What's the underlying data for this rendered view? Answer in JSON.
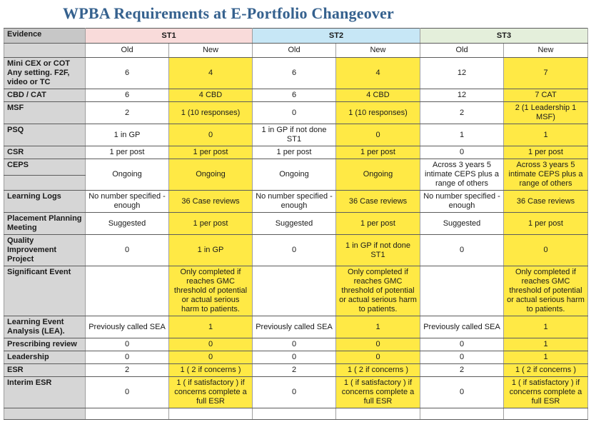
{
  "title": "WPBA Requirements at E-Portfolio Changeover",
  "colors": {
    "title_blue": "#35618e",
    "header_gray": "#c7c7c7",
    "label_gray": "#d6d6d6",
    "st1_pink": "#f9dbda",
    "st2_blue": "#c7e7f6",
    "st3_green": "#e4efdb",
    "new_highlight_yellow": "#ffe945"
  },
  "table": {
    "corner_label": "Evidence",
    "stage_headers": [
      "ST1",
      "ST2",
      "ST3"
    ],
    "subheaders": [
      "Old",
      "New"
    ],
    "rows": [
      {
        "label": "Mini CEX or COT Any setting.  F2F, video or TC",
        "cells": [
          "6",
          "4",
          "6",
          "4",
          "12",
          "7"
        ]
      },
      {
        "label": "CBD / CAT",
        "cells": [
          "6",
          "4 CBD",
          "6",
          "4 CBD",
          "12",
          "7 CAT"
        ]
      },
      {
        "label": "MSF",
        "cells": [
          "2",
          "1 (10 responses)",
          "0",
          "1 (10 responses)",
          "2",
          "2 (1 Leadership 1 MSF)"
        ]
      },
      {
        "label": "PSQ",
        "cells": [
          "1 in GP",
          "0",
          "1 in GP if not done ST1",
          "0",
          "1",
          "1"
        ]
      },
      {
        "label": "CSR",
        "cells": [
          "1 per post",
          "1 per post",
          "1 per post",
          "1 per post",
          "0",
          "1 per post"
        ]
      },
      {
        "label": "CEPS",
        "label_split": true,
        "cells": [
          "Ongoing",
          "Ongoing",
          "Ongoing",
          "Ongoing",
          "Across 3 years 5 intimate CEPS plus a range of others",
          "Across 3 years 5 intimate CEPS plus a range of others"
        ]
      },
      {
        "label": "Learning Logs",
        "cells": [
          "No number specified - enough",
          "36 Case reviews",
          "No number specified - enough",
          "36 Case reviews",
          "No number specified - enough",
          "36 Case reviews"
        ]
      },
      {
        "label": "Placement Planning Meeting",
        "cells": [
          "Suggested",
          "1 per post",
          "Suggested",
          "1 per post",
          "Suggested",
          "1 per post"
        ]
      },
      {
        "label": "Quality Improvement Project",
        "cells": [
          "0",
          "1 in GP",
          "0",
          "1 in GP if not done ST1",
          "0",
          "0"
        ]
      },
      {
        "label": "Significant Event",
        "cells": [
          "",
          "Only completed if reaches GMC threshold of potential or actual serious harm to patients.",
          "",
          "Only completed if reaches GMC threshold of potential or actual serious harm to patients.",
          "",
          "Only completed if reaches GMC threshold of potential or actual serious harm to patients."
        ]
      },
      {
        "label": "Learning Event Analysis (LEA).",
        "cells": [
          "Previously called SEA",
          "1",
          "Previously called SEA",
          "1",
          "Previously called SEA",
          "1"
        ]
      },
      {
        "label": "Prescribing review",
        "cells": [
          "0",
          "0",
          "0",
          "0",
          "0",
          "1"
        ]
      },
      {
        "label": "Leadership",
        "cells": [
          "0",
          "0",
          "0",
          "0",
          "0",
          "1"
        ]
      },
      {
        "label": "ESR",
        "cells": [
          "2",
          "1 (  2 if concerns )",
          "2",
          "1 (  2 if concerns )",
          "2",
          "1 (  2 if concerns )"
        ]
      },
      {
        "label": "Interim ESR",
        "cells": [
          "0",
          "1 ( if satisfactory ) if concerns complete a full ESR",
          "0",
          "1 ( if satisfactory ) if concerns complete a full ESR",
          "0",
          "1 ( if satisfactory ) if concerns complete a full ESR"
        ]
      },
      {
        "label": "",
        "no_highlight": true,
        "empty": true,
        "cells": [
          "",
          "",
          "",
          "",
          "",
          ""
        ]
      }
    ]
  }
}
